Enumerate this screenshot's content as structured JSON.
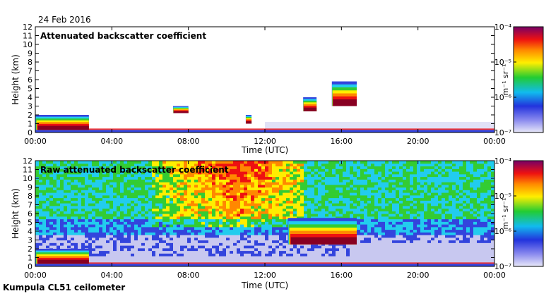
{
  "header": {
    "date": "24 Feb 2016"
  },
  "footer": {
    "site": "Kumpula CL51 ceilometer"
  },
  "colors": {
    "blue": "#3344dd",
    "cyan": "#22ccee",
    "green": "#33cc33",
    "yellow": "#ffee00",
    "orange": "#ff8800",
    "red": "#ee1111",
    "darkred": "#880022",
    "lavender": "#c8c8f0"
  },
  "chart_data": [
    {
      "type": "heatmap",
      "title": "Attenuated backscatter coefficient",
      "xlabel": "Time (UTC)",
      "ylabel": "Height (km)",
      "xlim": [
        0,
        24
      ],
      "ylim": [
        0,
        12
      ],
      "x_ticks": [
        "00:00",
        "04:00",
        "08:00",
        "12:00",
        "16:00",
        "20:00",
        "00:00"
      ],
      "y_ticks": [
        "0",
        "1",
        "2",
        "3",
        "4",
        "5",
        "6",
        "7",
        "8",
        "9",
        "10",
        "11",
        "12"
      ],
      "colorbar": {
        "label": "m⁻¹ sr⁻¹",
        "ticks": [
          "10⁻⁴",
          "10⁻⁵",
          "10⁻⁶",
          "10⁻⁷"
        ]
      },
      "features": [
        {
          "kind": "boundary-layer",
          "t_start": 0,
          "t_end": 2.8,
          "h_bottom": 0.3,
          "h_top": 2.0
        },
        {
          "kind": "cloud",
          "t_start": 7.2,
          "t_end": 8.0,
          "h_bottom": 2.2,
          "h_top": 3.0
        },
        {
          "kind": "cloud",
          "t_start": 11.0,
          "t_end": 11.3,
          "h_bottom": 1.0,
          "h_top": 2.0
        },
        {
          "kind": "cloud",
          "t_start": 14.0,
          "t_end": 14.7,
          "h_bottom": 2.4,
          "h_top": 4.0
        },
        {
          "kind": "cloud",
          "t_start": 15.5,
          "t_end": 16.8,
          "h_bottom": 3.0,
          "h_top": 5.8
        }
      ]
    },
    {
      "type": "heatmap",
      "title": "Raw attenuated backscatter coefficient",
      "xlabel": "Time (UTC)",
      "ylabel": "Height (km)",
      "xlim": [
        0,
        24
      ],
      "ylim": [
        0,
        12
      ],
      "x_ticks": [
        "00:00",
        "04:00",
        "08:00",
        "12:00",
        "16:00",
        "20:00",
        "00:00"
      ],
      "y_ticks": [
        "0",
        "1",
        "2",
        "3",
        "4",
        "5",
        "6",
        "7",
        "8",
        "9",
        "10",
        "11",
        "12"
      ],
      "colorbar": {
        "label": "m⁻¹ sr⁻¹",
        "ticks": [
          "10⁻⁴",
          "10⁻⁵",
          "10⁻⁶",
          "10⁻⁷"
        ]
      },
      "features": [
        {
          "kind": "noise-high",
          "t_start": 6,
          "t_end": 14,
          "h_bottom": 5,
          "h_top": 12
        },
        {
          "kind": "boundary-layer",
          "t_start": 0,
          "t_end": 2.8,
          "h_bottom": 0.3,
          "h_top": 2.0
        },
        {
          "kind": "cloud",
          "t_start": 13.2,
          "t_end": 16.8,
          "h_bottom": 2.5,
          "h_top": 5.5
        }
      ]
    }
  ]
}
